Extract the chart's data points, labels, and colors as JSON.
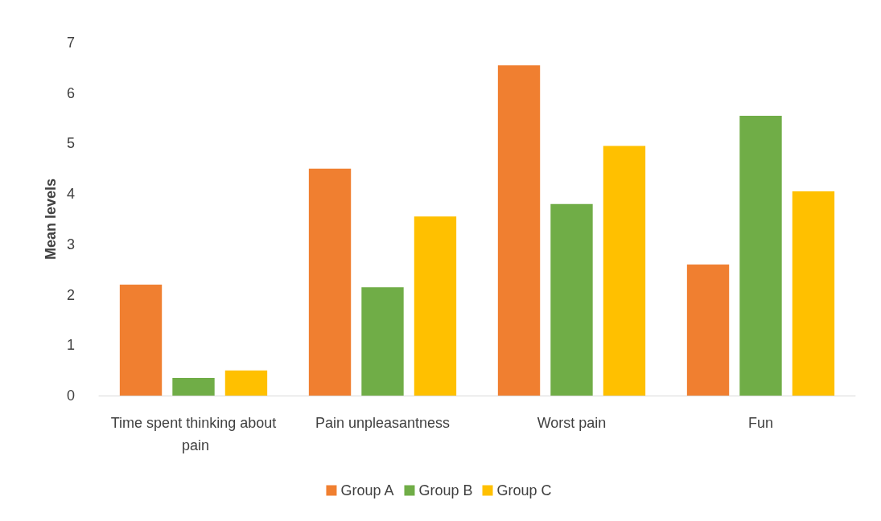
{
  "chart_data": {
    "type": "bar",
    "ylabel": "Mean levels",
    "categories": [
      "Time spent thinking about pain",
      "Pain unpleasantness",
      "Worst pain",
      "Fun"
    ],
    "series": [
      {
        "name": "Group A",
        "color": "#f07f30",
        "values": [
          2.2,
          4.5,
          6.55,
          2.6
        ]
      },
      {
        "name": "Group B",
        "color": "#70ad47",
        "values": [
          0.35,
          2.15,
          3.8,
          5.55
        ]
      },
      {
        "name": "Group C",
        "color": "#ffc000",
        "values": [
          0.5,
          3.55,
          4.95,
          4.05
        ]
      }
    ],
    "ylim": [
      0,
      7
    ],
    "yticks": [
      0,
      1,
      2,
      3,
      4,
      5,
      6,
      7
    ],
    "grid": false,
    "legend": "bottom"
  }
}
